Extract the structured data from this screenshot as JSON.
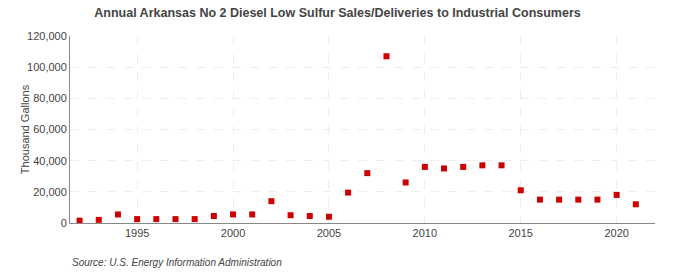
{
  "chart_data": {
    "type": "scatter",
    "title": "Annual Arkansas No 2 Diesel Low Sulfur Sales/Deliveries to Industrial Consumers",
    "ylabel": "Thousand Gallons",
    "annotations": [
      "Source: U.S. Energy Information Administration"
    ],
    "x": [
      1992,
      1993,
      1994,
      1995,
      1996,
      1997,
      1998,
      1999,
      2000,
      2001,
      2002,
      2003,
      2004,
      2005,
      2006,
      2007,
      2008,
      2009,
      2010,
      2011,
      2012,
      2013,
      2014,
      2015,
      2016,
      2017,
      2018,
      2019,
      2020,
      2021
    ],
    "values": [
      1500,
      2000,
      5500,
      2500,
      2500,
      2500,
      2500,
      4500,
      5500,
      5500,
      14000,
      5000,
      4500,
      4000,
      19500,
      32000,
      107000,
      26000,
      36000,
      35000,
      36000,
      37000,
      37000,
      21000,
      15000,
      15000,
      15000,
      15000,
      18000,
      12000
    ],
    "color": "#cc0000",
    "marker": "square",
    "xlim": [
      1991.5,
      2022
    ],
    "xticks": [
      1995,
      2000,
      2005,
      2010,
      2015,
      2020
    ],
    "ylim": [
      0,
      120000
    ],
    "yticks": [
      0,
      {
        "value": 20000,
        "label": "20,000"
      },
      {
        "value": 40000,
        "label": "40,000"
      },
      {
        "value": 60000,
        "label": "60,000"
      },
      {
        "value": 80000,
        "label": "80,000"
      },
      {
        "value": 100000,
        "label": "100,000"
      },
      {
        "value": 120000,
        "label": "120,000"
      }
    ],
    "grid": true
  }
}
